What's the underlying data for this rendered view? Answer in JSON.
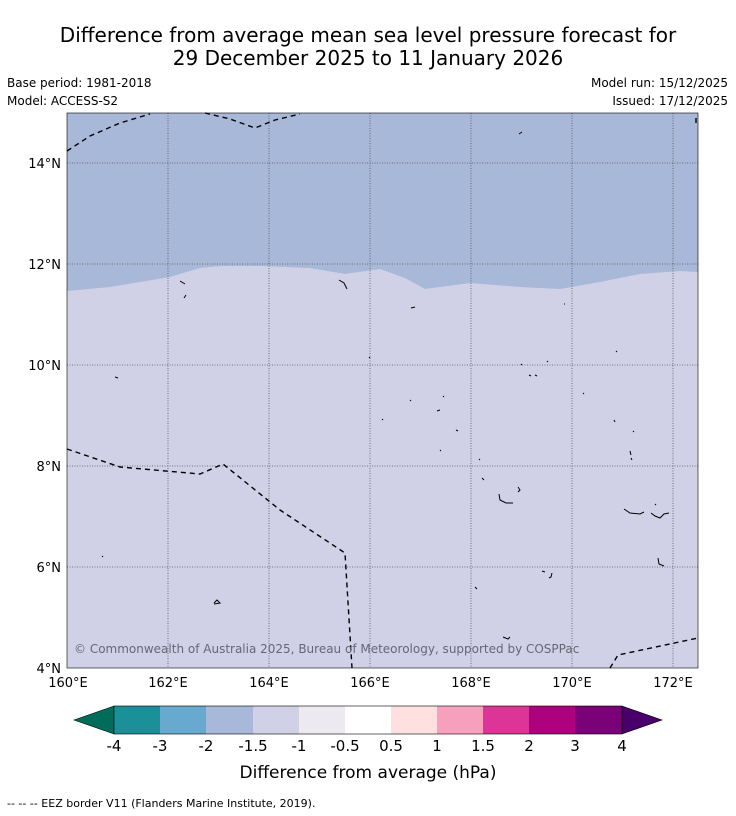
{
  "title": {
    "line1": "Difference from average mean sea level pressure forecast for",
    "line2": "29 December 2025 to 11 January 2026"
  },
  "info": {
    "base_period": "Base period: 1981-2018",
    "model": "Model: ACCESS-S2",
    "model_run": "Model run: 15/12/2025",
    "issued": "Issued: 17/12/2025"
  },
  "map": {
    "lat_range": [
      4,
      15
    ],
    "lon_range": [
      160,
      172.5
    ],
    "lat_ticks": [
      "4°N",
      "6°N",
      "8°N",
      "10°N",
      "12°N",
      "14°N"
    ],
    "lon_ticks": [
      "160°E",
      "162°E",
      "164°E",
      "166°E",
      "168°E",
      "170°E",
      "172°E"
    ],
    "regions": [
      {
        "category": "-2 to -1.5",
        "color": "#a7b8d9",
        "extent": "north of about 11.5°N-12°N"
      },
      {
        "category": "-1.5 to -1",
        "color": "#d0d1e6",
        "extent": "south of about 11.5°N-12°N"
      }
    ],
    "copyright": "© Commonwealth of Australia 2025, Bureau of Meteorology, supported by COSPPac"
  },
  "colorbar": {
    "labels": [
      "-4",
      "-3",
      "-2",
      "-1.5",
      "-1",
      "-0.5",
      "0.5",
      "1",
      "1.5",
      "2",
      "3",
      "4"
    ],
    "colors": [
      "#016c59",
      "#1c9099",
      "#67a9cf",
      "#a7b8d9",
      "#d0d1e6",
      "#ece9f0",
      "#ffffff",
      "#fee0e0",
      "#f7a0bd",
      "#dd3497",
      "#ae017e",
      "#7a0177",
      "#49006a"
    ],
    "title": "Difference from average (hPa)"
  },
  "footer": {
    "legend": "-- -- -- EEZ border V11 (Flanders Marine Institute, 2019)."
  }
}
